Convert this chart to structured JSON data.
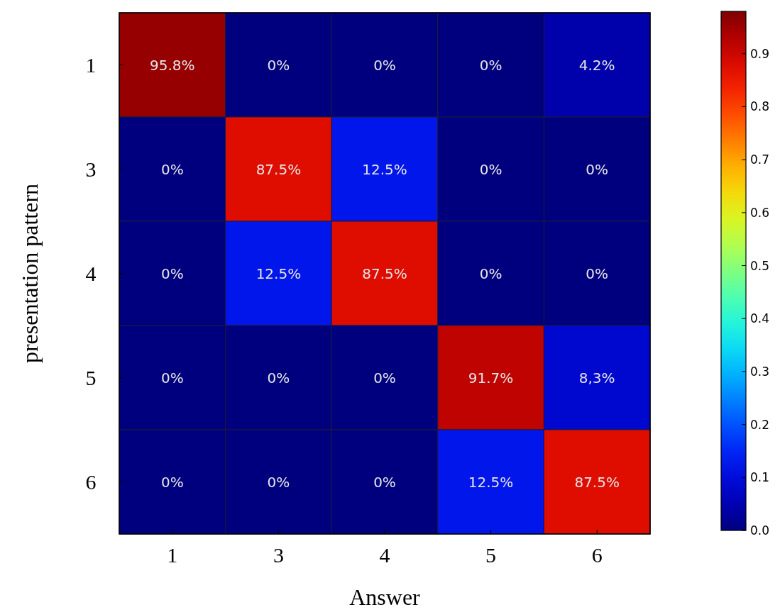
{
  "chart_data": {
    "type": "heatmap",
    "xlabel": "Answer",
    "ylabel": "presentation pattern",
    "categories": [
      "1",
      "3",
      "4",
      "5",
      "6"
    ],
    "y_categories": [
      "1",
      "3",
      "4",
      "5",
      "6"
    ],
    "cells": [
      [
        0.958,
        0,
        0,
        0,
        0.042
      ],
      [
        0,
        0.875,
        0.125,
        0,
        0
      ],
      [
        0,
        0.125,
        0.875,
        0,
        0
      ],
      [
        0,
        0,
        0,
        0.917,
        0.083
      ],
      [
        0,
        0,
        0,
        0.125,
        0.875
      ]
    ],
    "cell_labels": [
      [
        "95.8%",
        "0%",
        "0%",
        "0%",
        "4.2%"
      ],
      [
        "0%",
        "87.5%",
        "12.5%",
        "0%",
        "0%"
      ],
      [
        "0%",
        "12.5%",
        "87.5%",
        "0%",
        "0%"
      ],
      [
        "0%",
        "0%",
        "0%",
        "91.7%",
        "8,3%"
      ],
      [
        "0%",
        "0%",
        "0%",
        "12.5%",
        "87.5%"
      ]
    ],
    "clim": [
      0,
      0.98
    ],
    "cticks": [
      {
        "value": 0,
        "label": "0.0"
      },
      {
        "value": 0.1,
        "label": "0.1"
      },
      {
        "value": 0.2,
        "label": "0.2"
      },
      {
        "value": 0.3,
        "label": "0.3"
      },
      {
        "value": 0.4,
        "label": "0.4"
      },
      {
        "value": 0.5,
        "label": "0.5"
      },
      {
        "value": 0.6,
        "label": "0.6"
      },
      {
        "value": 0.7,
        "label": "0.7"
      },
      {
        "value": 0.8,
        "label": "0.8"
      },
      {
        "value": 0.9,
        "label": "0.9"
      }
    ]
  }
}
